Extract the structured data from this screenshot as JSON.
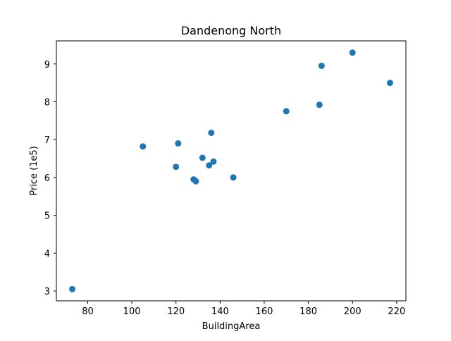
{
  "chart_data": {
    "type": "scatter",
    "title": "Dandenong North",
    "xlabel": "BuildingArea",
    "ylabel": "Price (1e5)",
    "xlim": [
      65.8,
      224.2
    ],
    "ylim": [
      2.74,
      9.61
    ],
    "xticks": [
      80,
      100,
      120,
      140,
      160,
      180,
      200,
      220
    ],
    "yticks": [
      3,
      4,
      5,
      6,
      7,
      8,
      9
    ],
    "grid": false,
    "legend": null,
    "colors": {
      "marker": "#1f77b4"
    },
    "points": [
      {
        "x": 73,
        "y": 3.05
      },
      {
        "x": 105,
        "y": 6.82
      },
      {
        "x": 120,
        "y": 6.28
      },
      {
        "x": 121,
        "y": 6.9
      },
      {
        "x": 128,
        "y": 5.95
      },
      {
        "x": 129,
        "y": 5.9
      },
      {
        "x": 132,
        "y": 6.52
      },
      {
        "x": 135,
        "y": 6.32
      },
      {
        "x": 136,
        "y": 7.18
      },
      {
        "x": 137,
        "y": 6.42
      },
      {
        "x": 146,
        "y": 6.0
      },
      {
        "x": 170,
        "y": 7.75
      },
      {
        "x": 185,
        "y": 7.92
      },
      {
        "x": 186,
        "y": 8.95
      },
      {
        "x": 200,
        "y": 9.3
      },
      {
        "x": 217,
        "y": 8.5
      }
    ]
  }
}
